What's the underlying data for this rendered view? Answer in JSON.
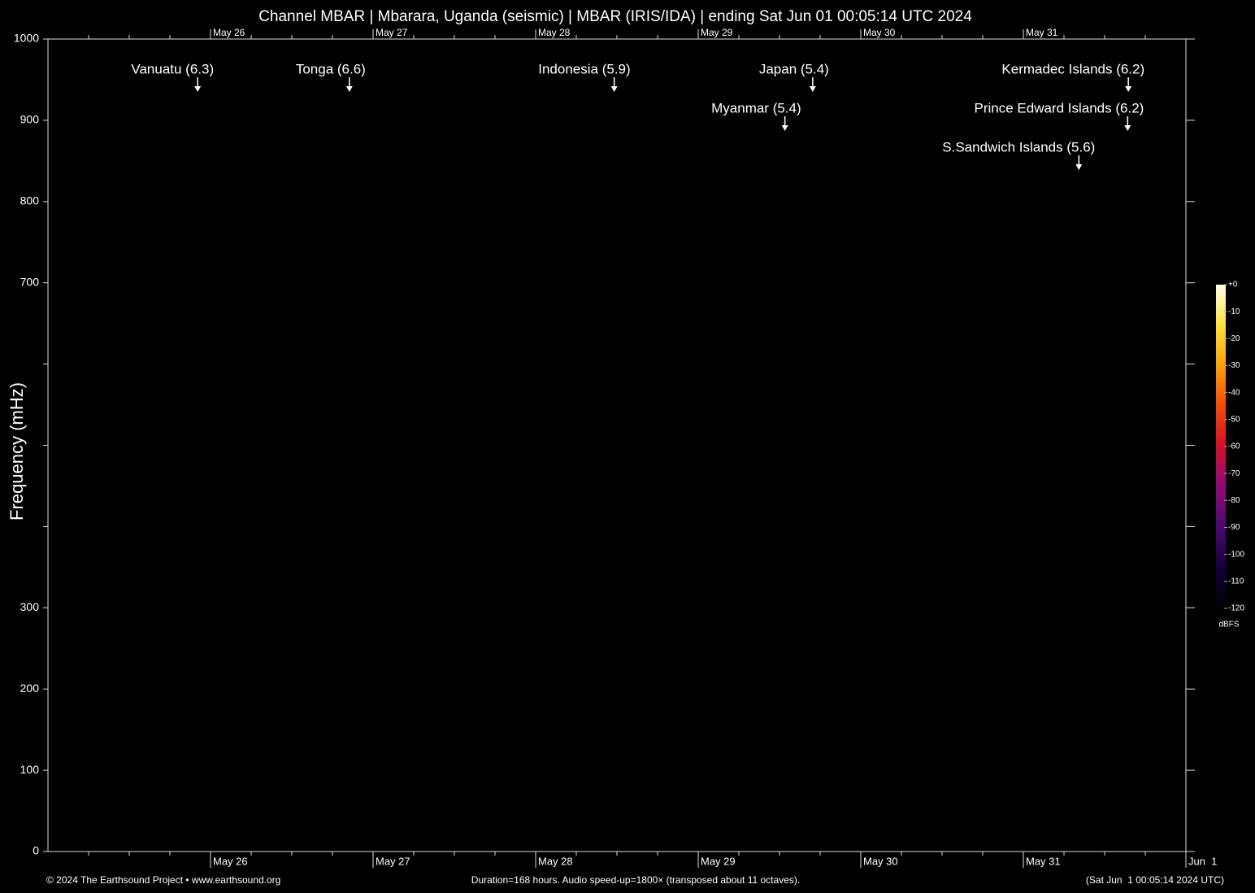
{
  "chart_data": {
    "type": "spectrogram",
    "title": "Channel MBAR | Mbarara, Uganda (seismic) | MBAR (IRIS/IDA) | ending Sat Jun 01 00:05:14 UTC 2024",
    "ylabel": "Frequency (mHz)",
    "ylim": [
      0,
      1000
    ],
    "yticks": [
      0,
      100,
      200,
      300,
      700,
      800,
      900,
      1000
    ],
    "yticks_unlabeled": [
      400,
      500,
      600
    ],
    "xlim": [
      0,
      168
    ],
    "xticks": [
      {
        "value": 24,
        "label": "May 26"
      },
      {
        "value": 48,
        "label": "May 27"
      },
      {
        "value": 72,
        "label": "May 28"
      },
      {
        "value": 96,
        "label": "May 29"
      },
      {
        "value": 120,
        "label": "May 30"
      },
      {
        "value": 144,
        "label": "May 31"
      },
      {
        "value": 168,
        "label": "Jun  1"
      }
    ],
    "xticks_minor": [
      6,
      12,
      18,
      30,
      36,
      42,
      54,
      60,
      66,
      78,
      84,
      90,
      102,
      108,
      114,
      126,
      132,
      138,
      150,
      156,
      162
    ],
    "events": [
      {
        "label": "Tonga (6.6)",
        "x": 44.5
      },
      {
        "label": "Vanuatu (6.3)",
        "x": 22.1
      },
      {
        "label": "Kermadec Islands (6.2)",
        "x": 159.5
      },
      {
        "label": "Prince Edward Islands (6.2)",
        "x": 159.4
      },
      {
        "label": "Indonesia (5.9)",
        "x": 83.6
      },
      {
        "label": "S.Sandwich Islands (5.6)",
        "x": 152.2
      },
      {
        "label": "Japan (5.4)",
        "x": 112.9
      },
      {
        "label": "Myanmar (5.4)",
        "x": 108.8
      }
    ],
    "colorbar": {
      "label": "dBFS",
      "lim": [
        -120,
        0
      ],
      "ticks": [
        {
          "value": 0,
          "label": "+0"
        },
        -10,
        -20,
        -30,
        -40,
        -50,
        -60,
        -70,
        -80,
        -90,
        -100,
        -110,
        -120
      ],
      "colors": [
        "#000000",
        "#14003c",
        "#4a0a6e",
        "#8e0a7a",
        "#d0102a",
        "#f04a0a",
        "#f8a010",
        "#fce040",
        "#ffffe8"
      ]
    },
    "footer_left": "© 2024 The Earthsound Project • www.earthsound.org",
    "footer_center": "Duration=168 hours. Audio speed-up=1800× (transposed about 11 octaves).",
    "footer_right": "(Sat Jun  1 00:05:14 2024 UTC)"
  }
}
